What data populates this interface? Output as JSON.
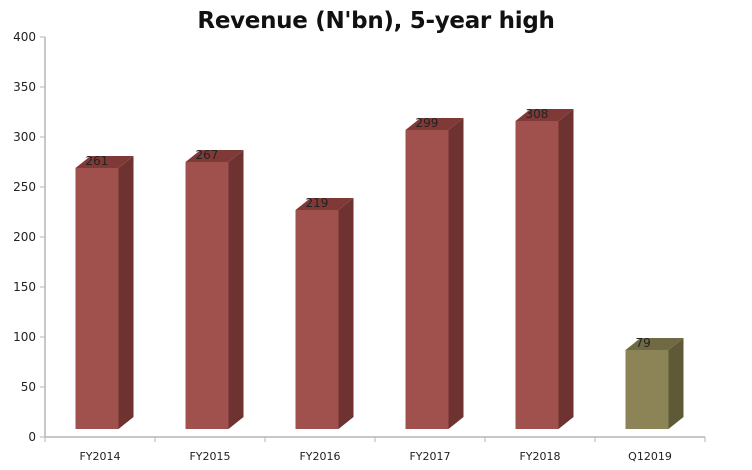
{
  "chart_data": {
    "type": "bar",
    "title": "Revenue (N'bn), 5-year high",
    "xlabel": "",
    "ylabel": "",
    "ylim": [
      0,
      400
    ],
    "yticks": [
      0,
      50,
      100,
      150,
      200,
      250,
      300,
      350,
      400
    ],
    "grid": false,
    "legend": null,
    "style": "3d-column",
    "categories": [
      "FY2014",
      "FY2015",
      "FY2016",
      "FY2017",
      "FY2018",
      "Q12019"
    ],
    "values": [
      261,
      267,
      219,
      299,
      308,
      79
    ],
    "bar_colors": [
      "#a0504d",
      "#a0504d",
      "#a0504d",
      "#a0504d",
      "#a0504d",
      "#8c8456"
    ]
  },
  "colors": {
    "red_front": "#a0504d",
    "red_side": "#6e3230",
    "red_top": "#7f3a37",
    "olive_front": "#8c8456",
    "olive_side": "#5e5a38",
    "olive_top": "#6f6a43",
    "axis": "#b5b5b5"
  }
}
